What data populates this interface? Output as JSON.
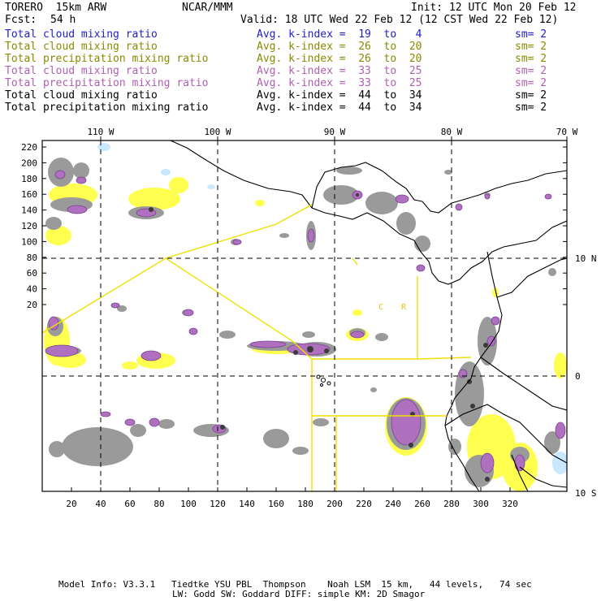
{
  "header": {
    "model": "TORERO  15km ARW",
    "org": "NCAR/MMM",
    "init": "Init: 12 UTC Mon 20 Feb 12",
    "fcst_label": "Fcst:",
    "fcst_value": "54 h",
    "valid": "Valid: 18 UTC Wed 22 Feb 12 (12 CST Wed 22 Feb 12)"
  },
  "legend": [
    {
      "field": "Total cloud mixing ratio",
      "kindex": "Avg. k-index =  19  to   4",
      "sm": "sm= 2",
      "color": "#2020c8"
    },
    {
      "field": "Total cloud mixing ratio",
      "kindex": "Avg. k-index =  26  to  20",
      "sm": "sm= 2",
      "color": "#8a8a00"
    },
    {
      "field": "Total precipitation mixing ratio",
      "kindex": "Avg. k-index =  26  to  20",
      "sm": "sm= 2",
      "color": "#8a8a00"
    },
    {
      "field": "Total cloud mixing ratio",
      "kindex": "Avg. k-index =  33  to  25",
      "sm": "sm= 2",
      "color": "#b060b0"
    },
    {
      "field": "Total precipitation mixing ratio",
      "kindex": "Avg. k-index =  33  to  25",
      "sm": "sm= 2",
      "color": "#b060b0"
    },
    {
      "field": "Total cloud mixing ratio",
      "kindex": "Avg. k-index =  44  to  34",
      "sm": "sm= 2",
      "color": "#000000"
    },
    {
      "field": "Total precipitation mixing ratio",
      "kindex": "Avg. k-index =  44  to  34",
      "sm": "sm= 2",
      "color": "#000000"
    }
  ],
  "map": {
    "lon_labels": [
      "110 W",
      "100 W",
      "90 W",
      "80 W",
      "70 W"
    ],
    "lat_labels": [
      "10 N",
      "0",
      "10 S"
    ],
    "y_ticks": [
      "220",
      "200",
      "180",
      "160",
      "140",
      "120",
      "100",
      "80",
      "60",
      "40",
      "20"
    ],
    "x_ticks": [
      "20",
      "40",
      "60",
      "80",
      "100",
      "120",
      "140",
      "160",
      "180",
      "200",
      "220",
      "240",
      "260",
      "280",
      "300",
      "320"
    ],
    "region_label_1": "C",
    "region_label_2": "R",
    "colors": {
      "gray": "#9a9a9a",
      "dark": "#3a3a3a",
      "purple": "#b070c0",
      "yellow": "#ffff50",
      "lightblue": "#c8e8ff",
      "box": "#f0e000"
    }
  },
  "footer": {
    "line1": "Model Info: V3.3.1   Tiedtke YSU PBL  Thompson    Noah LSM  15 km,   44 levels,   74 sec",
    "line2": "LW: Godd SW: Goddard DIFF: simple KM: 2D Smagor"
  }
}
